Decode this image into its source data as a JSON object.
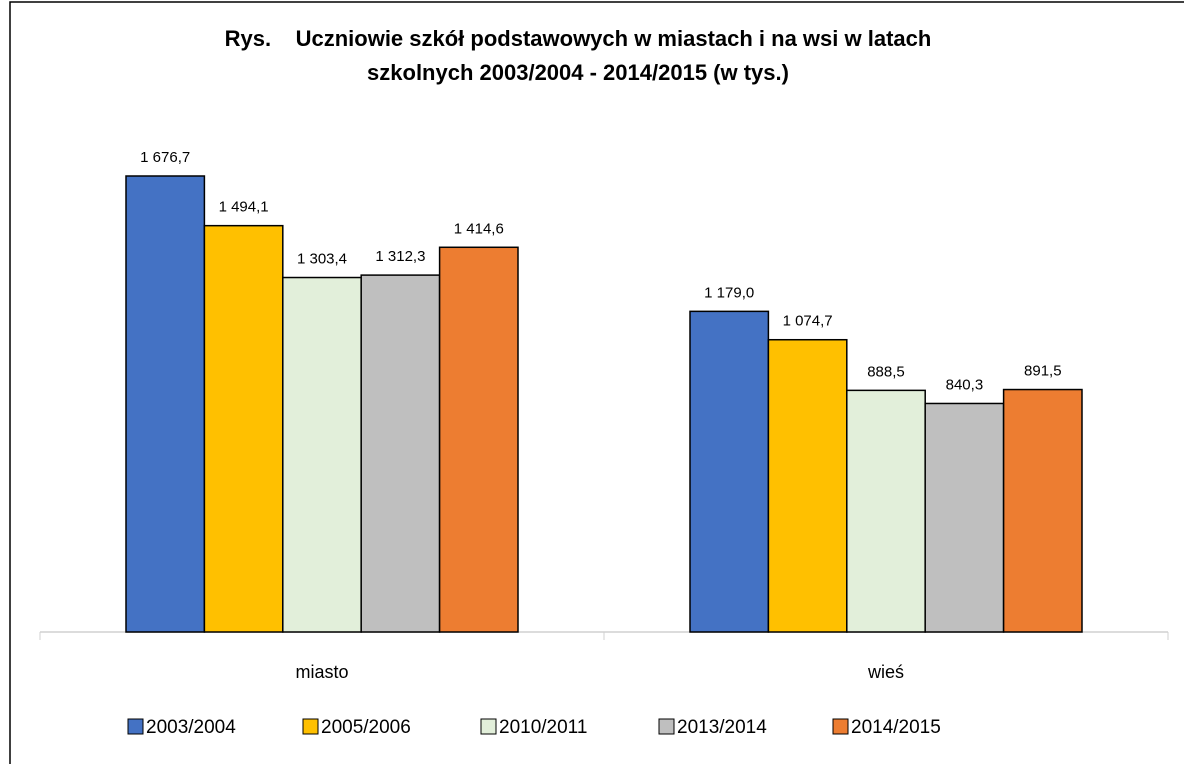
{
  "chart_data": {
    "type": "bar",
    "title": [
      "Rys.    Uczniowie szkół podstawowych w miastach i na wsi w latach",
      "szkolnych 2003/2004 - 2014/2015 (w tys.)"
    ],
    "categories": [
      "miasto",
      "wieś"
    ],
    "series": [
      {
        "name": "2003/2004",
        "color": "#4472c4",
        "values": [
          1676.7,
          1179.0
        ],
        "value_labels": [
          "1 676,7",
          "1 179,0"
        ]
      },
      {
        "name": "2005/2006",
        "color": "#ffc000",
        "values": [
          1494.1,
          1074.7
        ],
        "value_labels": [
          "1 494,1",
          "1 074,7"
        ]
      },
      {
        "name": "2010/2011",
        "color": "#e2efda",
        "values": [
          1303.4,
          888.5
        ],
        "value_labels": [
          "1 303,4",
          "888,5"
        ]
      },
      {
        "name": "2013/2014",
        "color": "#bfbfbf",
        "values": [
          1312.3,
          840.3
        ],
        "value_labels": [
          "1 312,3",
          "840,3"
        ]
      },
      {
        "name": "2014/2015",
        "color": "#ed7d31",
        "values": [
          1414.6,
          891.5
        ],
        "value_labels": [
          "1 414,6",
          "891,5"
        ]
      }
    ],
    "legend": "bottom"
  }
}
